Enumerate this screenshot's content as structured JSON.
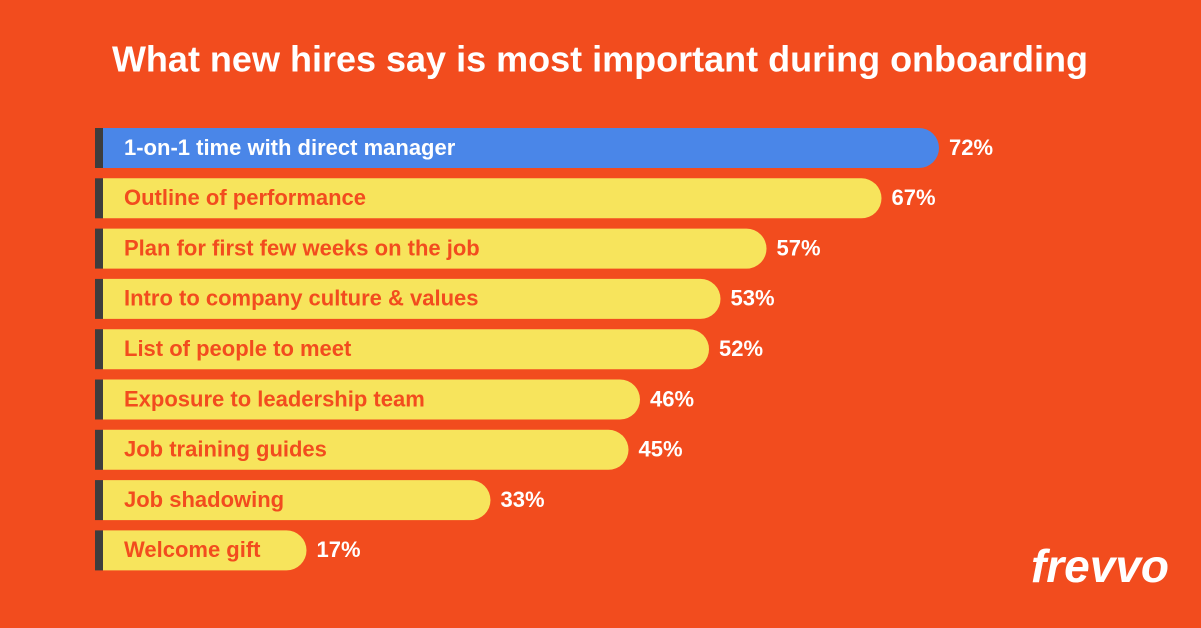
{
  "chart_data": {
    "type": "hbar",
    "title": "What new hires say is most important during onboarding",
    "categories": [
      "1-on-1 time with direct manager",
      "Outline of performance",
      "Plan for first few weeks on the job",
      "Intro to company culture & values",
      "List of people to meet",
      "Exposure to leadership team",
      "Job training guides",
      "Job shadowing",
      "Welcome gift"
    ],
    "values": [
      72,
      67,
      57,
      53,
      52,
      46,
      45,
      33,
      17
    ],
    "value_labels": [
      "72%",
      "67%",
      "57%",
      "53%",
      "52%",
      "46%",
      "45%",
      "33%",
      "17%"
    ],
    "colors": [
      "#4a86e8",
      "#f7e45c",
      "#f7e45c",
      "#f7e45c",
      "#f7e45c",
      "#f7e45c",
      "#f7e45c",
      "#f7e45c",
      "#f7e45c"
    ],
    "label_colors": [
      "#ffffff",
      "#f24c1e",
      "#f24c1e",
      "#f24c1e",
      "#f24c1e",
      "#f24c1e",
      "#f24c1e",
      "#f24c1e",
      "#f24c1e"
    ],
    "logo": "frevvo"
  }
}
